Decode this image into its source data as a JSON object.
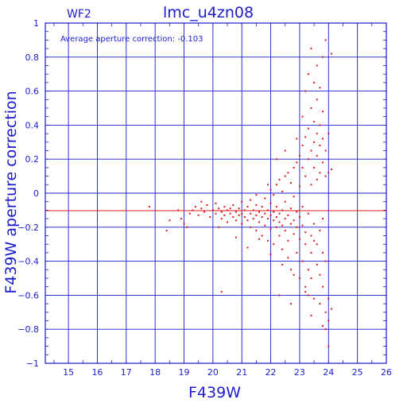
{
  "chart_data": {
    "type": "scatter",
    "title": "lmc_u4zn08",
    "panel": "WF2",
    "xlabel": "F439W",
    "ylabel": "F439W aperture correction",
    "annotation": "Average aperture correction:  -0.103",
    "xlim": [
      14.2,
      26.0
    ],
    "ylim": [
      -1.0,
      1.0
    ],
    "x_ticks": [
      "15",
      "16",
      "17",
      "18",
      "19",
      "20",
      "21",
      "22",
      "23",
      "24",
      "25",
      "26"
    ],
    "y_ticks": [
      "1",
      "0.8",
      "0.6",
      "0.4",
      "0.2",
      "0",
      "−0.2",
      "−0.4",
      "−0.6",
      "−0.8",
      "−1"
    ],
    "x_tick_values": [
      15,
      16,
      17,
      18,
      19,
      20,
      21,
      22,
      23,
      24,
      25,
      26
    ],
    "y_tick_values": [
      1,
      0.8,
      0.6,
      0.4,
      0.2,
      0,
      -0.2,
      -0.4,
      -0.6,
      -0.8,
      -1
    ],
    "average_line": -0.103,
    "grid": true,
    "colors": {
      "axis": "#1c1ccc",
      "points": "#e01818",
      "avg_line": "#e01818"
    },
    "points": [
      [
        17.8,
        -0.08
      ],
      [
        18.4,
        -0.22
      ],
      [
        18.5,
        -0.16
      ],
      [
        18.8,
        -0.1
      ],
      [
        18.9,
        -0.15
      ],
      [
        19.1,
        -0.2
      ],
      [
        19.2,
        -0.12
      ],
      [
        19.3,
        -0.1
      ],
      [
        19.4,
        -0.08
      ],
      [
        19.5,
        -0.13
      ],
      [
        19.6,
        -0.09
      ],
      [
        19.7,
        -0.11
      ],
      [
        19.8,
        -0.07
      ],
      [
        19.9,
        -0.14
      ],
      [
        20.0,
        -0.1
      ],
      [
        20.1,
        -0.06
      ],
      [
        20.1,
        -0.12
      ],
      [
        20.2,
        -0.09
      ],
      [
        20.3,
        -0.15
      ],
      [
        20.3,
        -0.11
      ],
      [
        20.4,
        -0.08
      ],
      [
        20.4,
        -0.13
      ],
      [
        20.5,
        -0.1
      ],
      [
        20.5,
        -0.17
      ],
      [
        20.6,
        -0.09
      ],
      [
        20.6,
        -0.12
      ],
      [
        20.7,
        -0.14
      ],
      [
        20.7,
        -0.07
      ],
      [
        20.8,
        -0.11
      ],
      [
        20.8,
        -0.16
      ],
      [
        20.9,
        -0.09
      ],
      [
        20.9,
        -0.13
      ],
      [
        21.0,
        -0.12
      ],
      [
        21.0,
        -0.05
      ],
      [
        21.0,
        -0.18
      ],
      [
        21.1,
        -0.1
      ],
      [
        21.1,
        -0.14
      ],
      [
        21.2,
        -0.08
      ],
      [
        21.2,
        -0.16
      ],
      [
        21.3,
        -0.12
      ],
      [
        21.3,
        -0.04
      ],
      [
        21.3,
        -0.2
      ],
      [
        21.4,
        -0.1
      ],
      [
        21.4,
        -0.15
      ],
      [
        21.5,
        -0.13
      ],
      [
        21.5,
        -0.07
      ],
      [
        21.5,
        -0.22
      ],
      [
        21.6,
        -0.11
      ],
      [
        21.6,
        -0.17
      ],
      [
        21.7,
        -0.14
      ],
      [
        21.7,
        -0.08
      ],
      [
        21.7,
        -0.25
      ],
      [
        21.8,
        -0.12
      ],
      [
        21.8,
        -0.19
      ],
      [
        21.8,
        -0.03
      ],
      [
        21.9,
        -0.15
      ],
      [
        21.9,
        -0.1
      ],
      [
        21.9,
        -0.28
      ],
      [
        22.0,
        -0.13
      ],
      [
        22.0,
        -0.06
      ],
      [
        22.0,
        -0.21
      ],
      [
        22.0,
        0.02
      ],
      [
        22.1,
        -0.16
      ],
      [
        22.1,
        -0.11
      ],
      [
        22.1,
        -0.3
      ],
      [
        22.1,
        -0.01
      ],
      [
        22.2,
        -0.14
      ],
      [
        22.2,
        -0.2
      ],
      [
        22.2,
        -0.08
      ],
      [
        22.2,
        0.05
      ],
      [
        22.3,
        -0.17
      ],
      [
        22.3,
        -0.12
      ],
      [
        22.3,
        -0.25
      ],
      [
        22.3,
        0.08
      ],
      [
        22.4,
        -0.1
      ],
      [
        22.4,
        -0.19
      ],
      [
        22.4,
        -0.33
      ],
      [
        22.4,
        0.01
      ],
      [
        22.5,
        -0.15
      ],
      [
        22.5,
        -0.22
      ],
      [
        22.5,
        0.1
      ],
      [
        22.5,
        -0.05
      ],
      [
        22.6,
        -0.13
      ],
      [
        22.6,
        -0.28
      ],
      [
        22.6,
        0.12
      ],
      [
        22.6,
        -0.38
      ],
      [
        22.7,
        -0.18
      ],
      [
        22.7,
        -0.09
      ],
      [
        22.7,
        0.06
      ],
      [
        22.7,
        -0.45
      ],
      [
        22.8,
        -0.16
      ],
      [
        22.8,
        -0.24
      ],
      [
        22.8,
        0.15
      ],
      [
        22.8,
        -0.02
      ],
      [
        22.9,
        -0.2
      ],
      [
        22.9,
        -0.11
      ],
      [
        22.9,
        -0.35
      ],
      [
        22.9,
        0.18
      ],
      [
        23.0,
        -0.14
      ],
      [
        23.0,
        -0.27
      ],
      [
        23.0,
        0.04
      ],
      [
        23.0,
        0.22
      ],
      [
        23.0,
        -0.5
      ],
      [
        23.1,
        -0.19
      ],
      [
        23.1,
        -0.08
      ],
      [
        23.1,
        0.28
      ],
      [
        23.1,
        -0.4
      ],
      [
        23.1,
        0.45
      ],
      [
        23.2,
        -0.23
      ],
      [
        23.2,
        0.1
      ],
      [
        23.2,
        0.33
      ],
      [
        23.2,
        -0.3
      ],
      [
        23.2,
        0.6
      ],
      [
        23.2,
        -0.55
      ],
      [
        23.3,
        -0.12
      ],
      [
        23.3,
        0.2
      ],
      [
        23.3,
        0.38
      ],
      [
        23.3,
        -0.45
      ],
      [
        23.3,
        0.7
      ],
      [
        23.3,
        -0.6
      ],
      [
        23.4,
        -0.25
      ],
      [
        23.4,
        0.05
      ],
      [
        23.4,
        0.25
      ],
      [
        23.4,
        0.5
      ],
      [
        23.4,
        -0.35
      ],
      [
        23.4,
        0.85
      ],
      [
        23.4,
        -0.5
      ],
      [
        23.5,
        -0.18
      ],
      [
        23.5,
        0.15
      ],
      [
        23.5,
        0.3
      ],
      [
        23.5,
        0.42
      ],
      [
        23.5,
        -0.28
      ],
      [
        23.5,
        0.65
      ],
      [
        23.5,
        -0.62
      ],
      [
        23.6,
        -0.3
      ],
      [
        23.6,
        0.08
      ],
      [
        23.6,
        0.22
      ],
      [
        23.6,
        0.35
      ],
      [
        23.6,
        -0.42
      ],
      [
        23.6,
        0.55
      ],
      [
        23.6,
        0.75
      ],
      [
        23.7,
        -0.22
      ],
      [
        23.7,
        0.12
      ],
      [
        23.7,
        0.28
      ],
      [
        23.7,
        0.4
      ],
      [
        23.7,
        -0.48
      ],
      [
        23.7,
        0.62
      ],
      [
        23.7,
        -0.65
      ],
      [
        23.8,
        -0.35
      ],
      [
        23.8,
        0.18
      ],
      [
        23.8,
        0.32
      ],
      [
        23.8,
        -0.15
      ],
      [
        23.8,
        0.48
      ],
      [
        23.8,
        -0.55
      ],
      [
        23.8,
        0.8
      ],
      [
        23.9,
        -0.4
      ],
      [
        23.9,
        0.1
      ],
      [
        23.9,
        0.25
      ],
      [
        23.9,
        -0.7
      ],
      [
        23.9,
        0.9
      ],
      [
        23.9,
        -0.8
      ],
      [
        24.0,
        -0.62
      ],
      [
        24.0,
        0.12
      ],
      [
        24.0,
        -0.75
      ],
      [
        24.0,
        0.35
      ],
      [
        24.1,
        -0.68
      ],
      [
        24.1,
        0.14
      ],
      [
        24.1,
        0.82
      ],
      [
        24.0,
        -0.9
      ],
      [
        23.8,
        -0.78
      ],
      [
        19.0,
        -0.18
      ],
      [
        19.6,
        -0.05
      ],
      [
        20.2,
        -0.2
      ],
      [
        20.8,
        -0.26
      ],
      [
        21.2,
        -0.32
      ],
      [
        21.6,
        -0.27
      ],
      [
        22.0,
        -0.36
      ],
      [
        22.4,
        -0.42
      ],
      [
        22.8,
        -0.48
      ],
      [
        23.2,
        -0.58
      ],
      [
        20.3,
        -0.58
      ],
      [
        22.3,
        -0.6
      ],
      [
        22.7,
        -0.65
      ],
      [
        23.4,
        -0.72
      ],
      [
        21.5,
        -0.01
      ],
      [
        21.9,
        0.05
      ],
      [
        22.2,
        0.2
      ],
      [
        22.5,
        0.25
      ],
      [
        22.9,
        0.32
      ],
      [
        23.1,
        0.15
      ]
    ]
  }
}
